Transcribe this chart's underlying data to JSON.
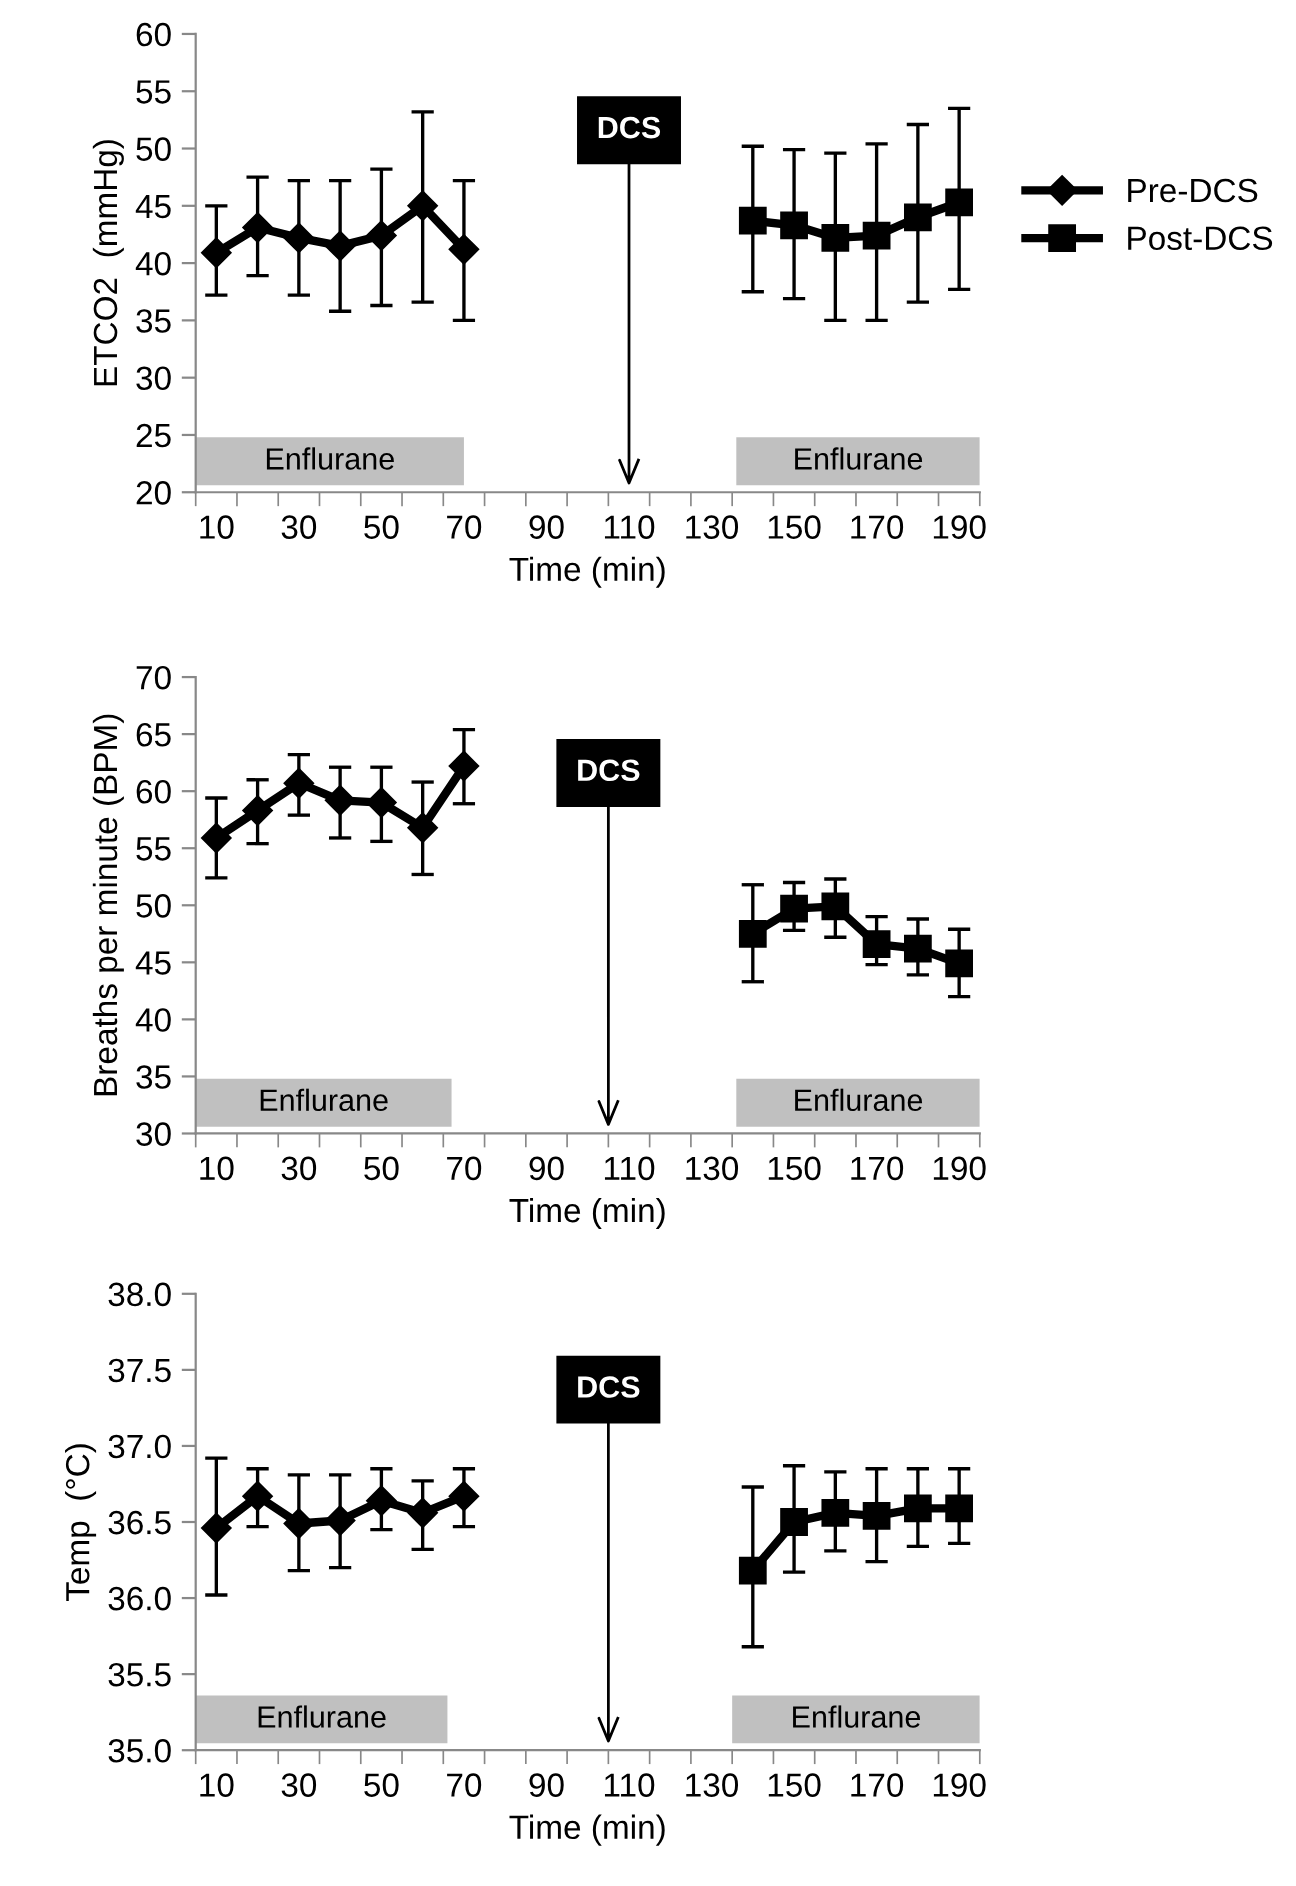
{
  "chart_data": [
    {
      "type": "line",
      "xlabel": "Time (min)",
      "ylabel": "ETCO2  (mmHg)",
      "legend": "right",
      "grid": false,
      "xlim": [
        5,
        195
      ],
      "ylim": [
        20,
        60
      ],
      "yticks": [
        20,
        25,
        30,
        35,
        40,
        45,
        50,
        55,
        60
      ],
      "xticks": [
        {
          "value": 5,
          "label": null
        },
        10,
        {
          "value": 15,
          "label": null
        },
        {
          "value": 25,
          "label": null
        },
        30,
        {
          "value": 35,
          "label": null
        },
        {
          "value": 45,
          "label": null
        },
        50,
        {
          "value": 55,
          "label": null
        },
        {
          "value": 65,
          "label": null
        },
        70,
        {
          "value": 75,
          "label": null
        },
        {
          "value": 85,
          "label": null
        },
        90,
        {
          "value": 95,
          "label": null
        },
        {
          "value": 105,
          "label": null
        },
        110,
        {
          "value": 115,
          "label": null
        },
        {
          "value": 125,
          "label": null
        },
        130,
        {
          "value": 135,
          "label": null
        },
        {
          "value": 145,
          "label": null
        },
        150,
        {
          "value": 155,
          "label": null
        },
        {
          "value": 165,
          "label": null
        },
        170,
        {
          "value": 175,
          "label": null
        },
        {
          "value": 185,
          "label": null
        },
        190,
        {
          "value": 195,
          "label": null
        }
      ],
      "series": [
        {
          "name": "Pre-DCS",
          "color": "#000000",
          "marker": "diamond",
          "x": [
            10,
            20,
            30,
            40,
            50,
            60,
            70
          ],
          "values": [
            40.9,
            43.1,
            42.2,
            41.5,
            42.4,
            45.0,
            41.2
          ],
          "errors": [
            [
              37.2,
              45.0
            ],
            [
              38.9,
              47.5
            ],
            [
              37.2,
              47.2
            ],
            [
              35.8,
              47.2
            ],
            [
              36.3,
              48.2
            ],
            [
              36.6,
              53.2
            ],
            [
              35.0,
              47.2
            ]
          ]
        },
        {
          "name": "Post-DCS",
          "color": "#000000",
          "marker": "square",
          "x": [
            140,
            150,
            160,
            170,
            180,
            190
          ],
          "values": [
            43.7,
            43.3,
            42.2,
            42.4,
            44.0,
            45.3
          ],
          "errors": [
            [
              37.5,
              50.2
            ],
            [
              36.9,
              49.9
            ],
            [
              35.0,
              49.6
            ],
            [
              35.0,
              50.4
            ],
            [
              36.6,
              52.1
            ],
            [
              37.7,
              53.5
            ]
          ]
        }
      ],
      "bands": [
        {
          "axis": "x",
          "from": 5,
          "to": 70,
          "label": "Enflurane",
          "color": "#c0c0c0"
        },
        {
          "axis": "x",
          "from": 136,
          "to": 195,
          "label": "Enflurane",
          "color": "#c0c0c0"
        }
      ],
      "ref_lines": [
        {
          "axis": "x",
          "value": 110,
          "label": "DCS",
          "color": "#000000"
        }
      ]
    },
    {
      "type": "line",
      "xlabel": "Time (min)",
      "ylabel": "Breaths per minute (BPM)",
      "grid": false,
      "xlim": [
        5,
        195
      ],
      "ylim": [
        30,
        70
      ],
      "yticks": [
        30,
        35,
        40,
        45,
        50,
        55,
        60,
        65,
        70
      ],
      "xticks": [
        {
          "value": 5,
          "label": null
        },
        10,
        {
          "value": 15,
          "label": null
        },
        {
          "value": 25,
          "label": null
        },
        30,
        {
          "value": 35,
          "label": null
        },
        {
          "value": 45,
          "label": null
        },
        50,
        {
          "value": 55,
          "label": null
        },
        {
          "value": 65,
          "label": null
        },
        70,
        {
          "value": 75,
          "label": null
        },
        {
          "value": 85,
          "label": null
        },
        90,
        {
          "value": 95,
          "label": null
        },
        {
          "value": 105,
          "label": null
        },
        110,
        {
          "value": 115,
          "label": null
        },
        {
          "value": 125,
          "label": null
        },
        130,
        {
          "value": 135,
          "label": null
        },
        {
          "value": 145,
          "label": null
        },
        150,
        {
          "value": 155,
          "label": null
        },
        {
          "value": 165,
          "label": null
        },
        170,
        {
          "value": 175,
          "label": null
        },
        {
          "value": 185,
          "label": null
        },
        190,
        {
          "value": 195,
          "label": null
        }
      ],
      "series": [
        {
          "color": "#000000",
          "marker": "diamond",
          "x": [
            10,
            20,
            30,
            40,
            50,
            60,
            70
          ],
          "values": [
            55.9,
            58.3,
            60.7,
            59.2,
            59.0,
            56.8,
            62.2
          ],
          "errors": [
            [
              52.4,
              59.4
            ],
            [
              55.4,
              61.0
            ],
            [
              57.9,
              63.2
            ],
            [
              55.9,
              62.1
            ],
            [
              55.6,
              62.1
            ],
            [
              52.7,
              60.8
            ],
            [
              58.9,
              65.4
            ]
          ]
        },
        {
          "color": "#000000",
          "marker": "square",
          "x": [
            140,
            150,
            160,
            170,
            180,
            190
          ],
          "values": [
            47.5,
            49.7,
            49.9,
            46.6,
            46.2,
            44.9
          ],
          "errors": [
            [
              43.3,
              51.8
            ],
            [
              47.8,
              52.0
            ],
            [
              47.2,
              52.3
            ],
            [
              44.8,
              49.0
            ],
            [
              43.9,
              48.8
            ],
            [
              42.0,
              47.9
            ]
          ]
        }
      ],
      "bands": [
        {
          "axis": "x",
          "from": 5,
          "to": 67,
          "label": "Enflurane",
          "color": "#c0c0c0"
        },
        {
          "axis": "x",
          "from": 136,
          "to": 195,
          "label": "Enflurane",
          "color": "#c0c0c0"
        }
      ],
      "ref_lines": [
        {
          "axis": "x",
          "value": 105,
          "label": "DCS",
          "color": "#000000"
        }
      ]
    },
    {
      "type": "line",
      "xlabel": "Time (min)",
      "ylabel": "Temp  (°C)",
      "grid": false,
      "xlim": [
        5,
        195
      ],
      "ylim": [
        35,
        38
      ],
      "yticks": [
        {
          "value": 35,
          "label": "35.0"
        },
        35.5,
        {
          "value": 36,
          "label": "36.0"
        },
        36.5,
        {
          "value": 37,
          "label": "37.0"
        },
        37.5,
        {
          "value": 38,
          "label": "38.0"
        }
      ],
      "xticks": [
        {
          "value": 5,
          "label": null
        },
        10,
        {
          "value": 15,
          "label": null
        },
        {
          "value": 25,
          "label": null
        },
        30,
        {
          "value": 35,
          "label": null
        },
        {
          "value": 45,
          "label": null
        },
        50,
        {
          "value": 55,
          "label": null
        },
        {
          "value": 65,
          "label": null
        },
        70,
        {
          "value": 75,
          "label": null
        },
        {
          "value": 85,
          "label": null
        },
        90,
        {
          "value": 95,
          "label": null
        },
        {
          "value": 105,
          "label": null
        },
        110,
        {
          "value": 115,
          "label": null
        },
        {
          "value": 125,
          "label": null
        },
        130,
        {
          "value": 135,
          "label": null
        },
        {
          "value": 145,
          "label": null
        },
        150,
        {
          "value": 155,
          "label": null
        },
        {
          "value": 165,
          "label": null
        },
        170,
        {
          "value": 175,
          "label": null
        },
        {
          "value": 185,
          "label": null
        },
        190,
        {
          "value": 195,
          "label": null
        }
      ],
      "series": [
        {
          "color": "#000000",
          "marker": "diamond",
          "x": [
            10,
            20,
            30,
            40,
            50,
            60,
            70
          ],
          "values": [
            36.46,
            36.67,
            36.49,
            36.51,
            36.64,
            36.56,
            36.67
          ],
          "errors": [
            [
              36.02,
              36.92
            ],
            [
              36.47,
              36.85
            ],
            [
              36.18,
              36.81
            ],
            [
              36.2,
              36.81
            ],
            [
              36.45,
              36.85
            ],
            [
              36.32,
              36.77
            ],
            [
              36.47,
              36.85
            ]
          ]
        },
        {
          "color": "#000000",
          "marker": "square",
          "x": [
            140,
            150,
            160,
            170,
            180,
            190
          ],
          "values": [
            36.18,
            36.5,
            36.56,
            36.54,
            36.59,
            36.59
          ],
          "errors": [
            [
              35.68,
              36.73
            ],
            [
              36.17,
              36.87
            ],
            [
              36.31,
              36.83
            ],
            [
              36.24,
              36.85
            ],
            [
              36.34,
              36.85
            ],
            [
              36.36,
              36.85
            ]
          ]
        }
      ],
      "bands": [
        {
          "axis": "x",
          "from": 5,
          "to": 66,
          "label": "Enflurane",
          "color": "#c0c0c0"
        },
        {
          "axis": "x",
          "from": 135,
          "to": 195,
          "label": "Enflurane",
          "color": "#c0c0c0"
        }
      ],
      "ref_lines": [
        {
          "axis": "x",
          "value": 105,
          "label": "DCS",
          "color": "#000000"
        }
      ]
    }
  ]
}
